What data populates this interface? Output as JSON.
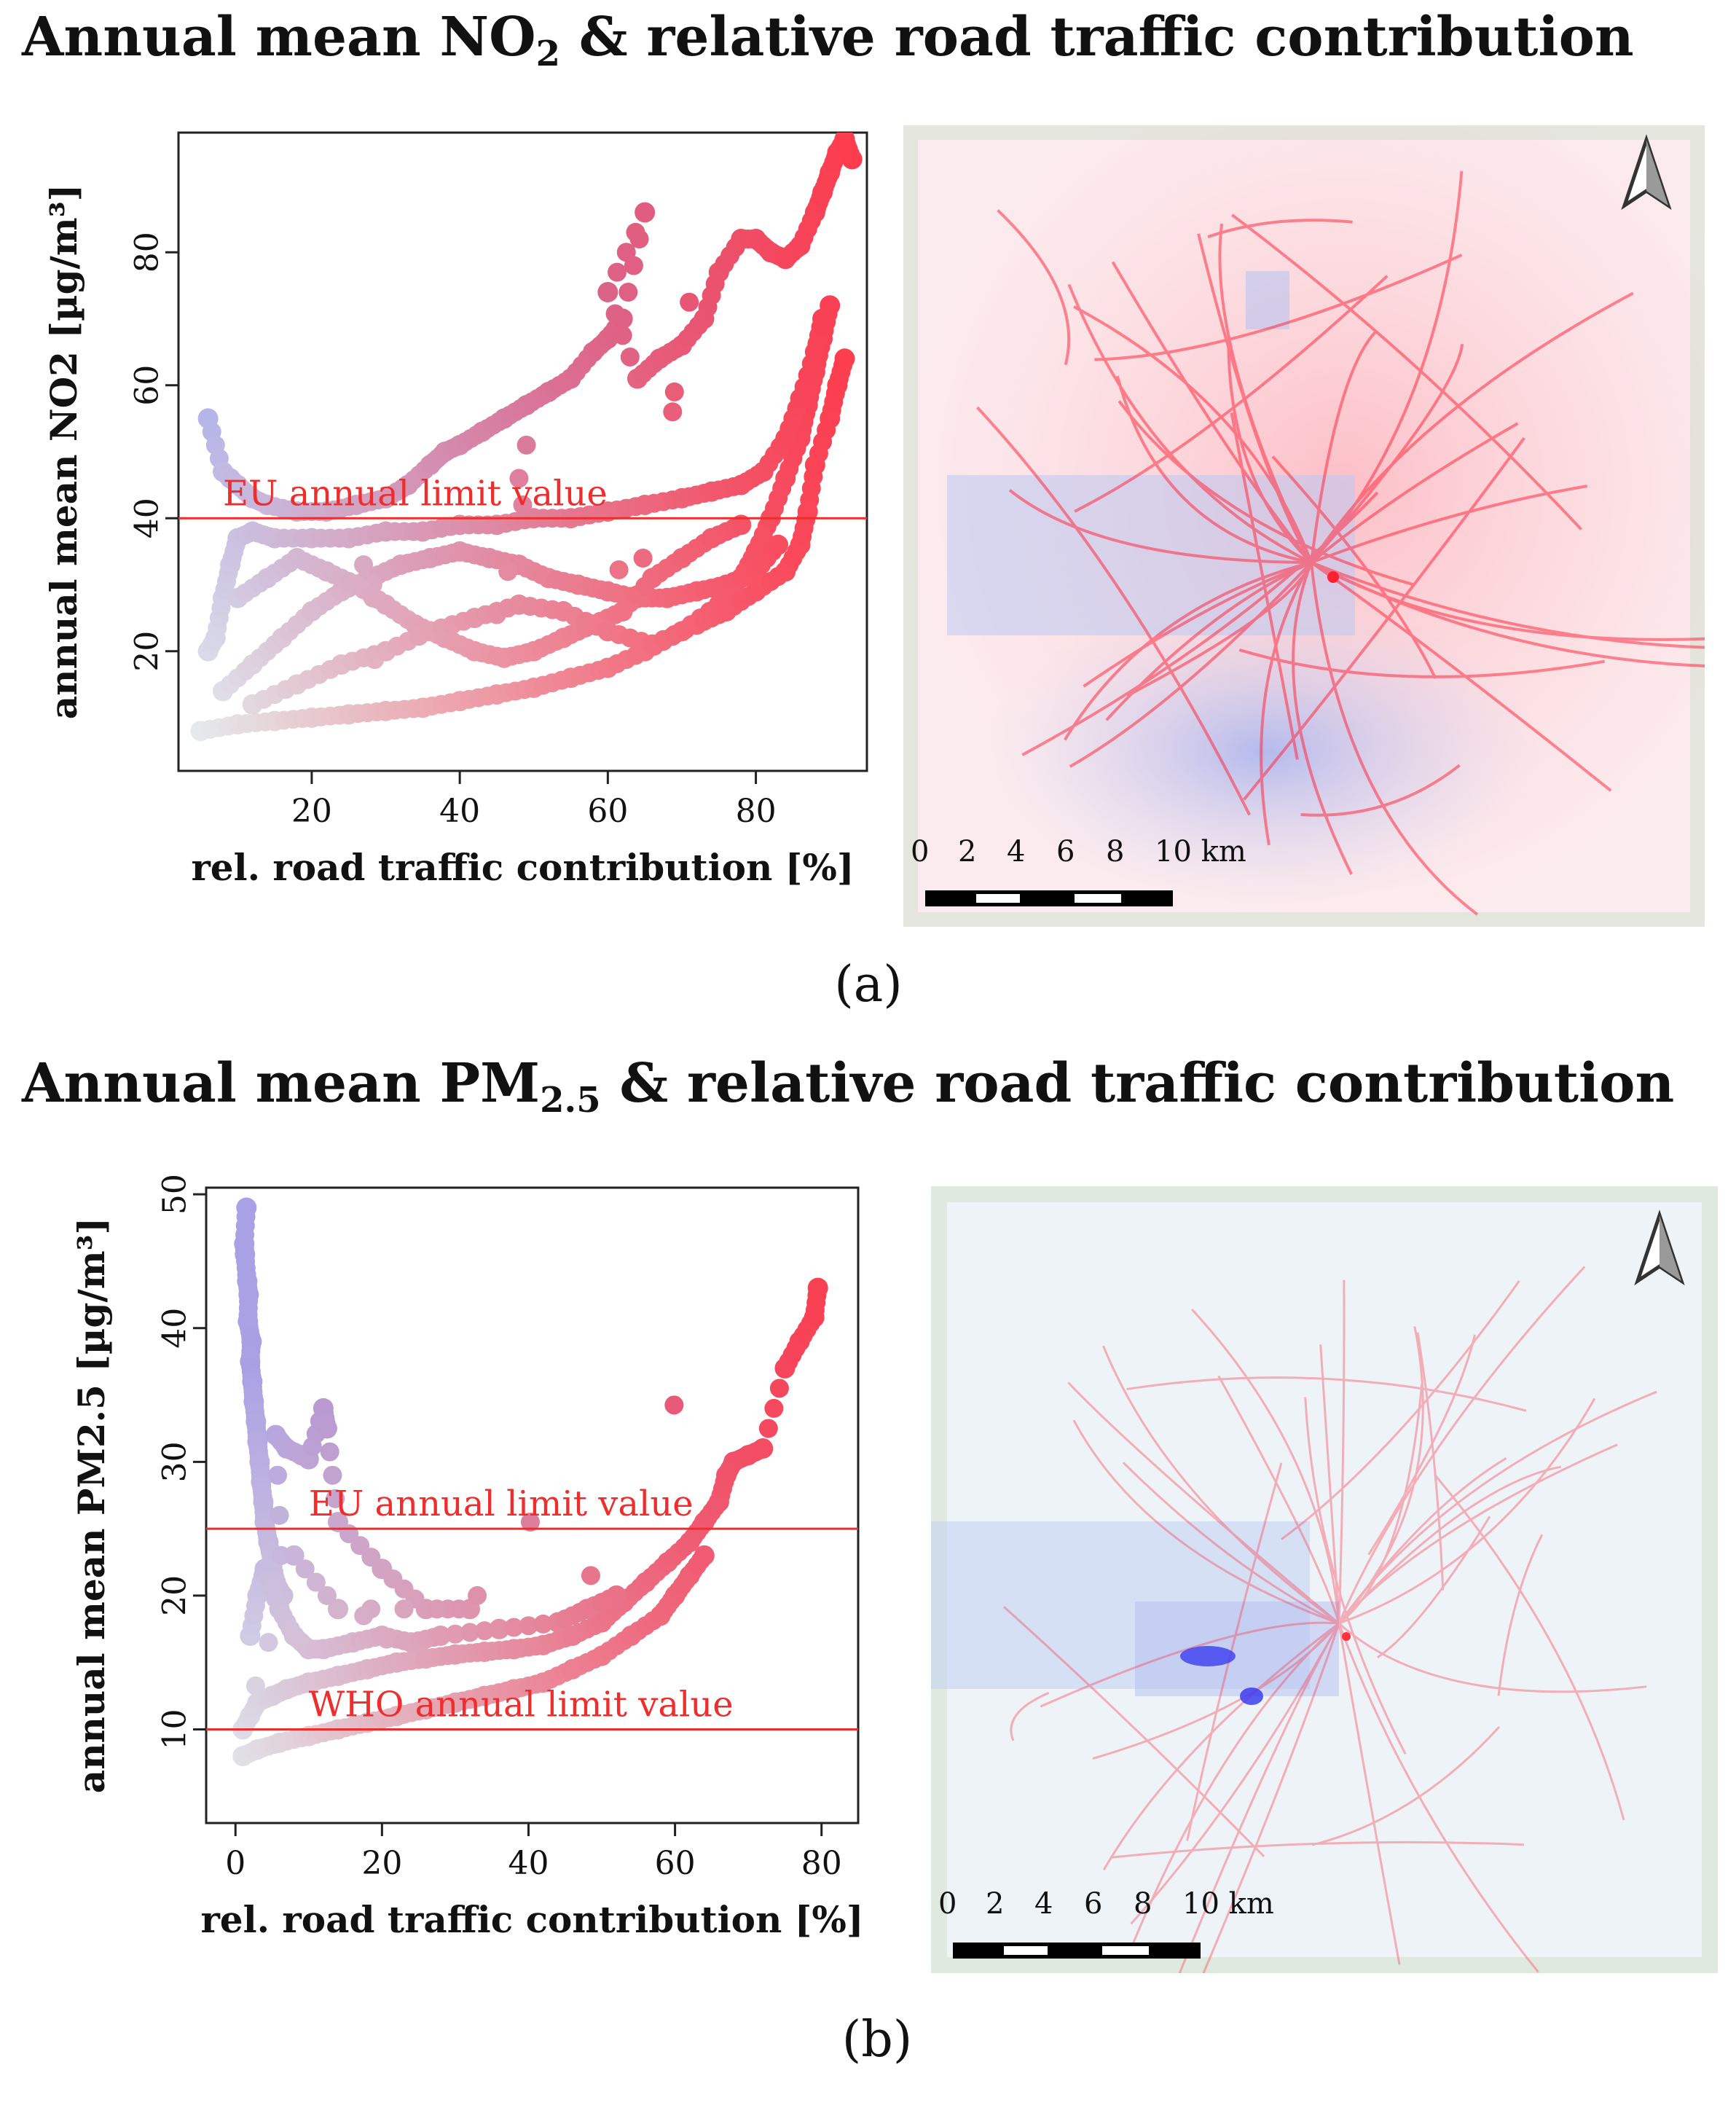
{
  "figure": {
    "panel_a": {
      "title_main": "Annual mean NO",
      "title_sub": "2",
      "title_rest": " & relative road traffic contribution",
      "label": "(a)"
    },
    "panel_b": {
      "title_main": "Annual mean PM",
      "title_sub": "2.5",
      "title_rest": " & relative road traffic contribution",
      "label": "(b)"
    }
  },
  "chart_data": [
    {
      "type": "scatter",
      "title": "",
      "xlabel": "rel. road traffic contribution [%]",
      "ylabel": "annual mean NO2 [µg/m³]",
      "xticks": [
        20,
        40,
        60,
        80
      ],
      "yticks": [
        20,
        40,
        60,
        80
      ],
      "xlim": [
        2,
        95
      ],
      "ylim": [
        2,
        98
      ],
      "grid": false,
      "color_scale": [
        "#eaf6f0",
        "#a3a8ef",
        "#ff3a4a"
      ],
      "reference_lines": [
        {
          "name": "EU annual limit value",
          "y": 40,
          "color": "#ee2d2d"
        }
      ],
      "points": [
        [
          6,
          55
        ],
        [
          8,
          47
        ],
        [
          9,
          46
        ],
        [
          10,
          45
        ],
        [
          12,
          43
        ],
        [
          14,
          42
        ],
        [
          18,
          41
        ],
        [
          22,
          41
        ],
        [
          26,
          42
        ],
        [
          30,
          43
        ],
        [
          33,
          45
        ],
        [
          36,
          48
        ],
        [
          38,
          50
        ],
        [
          40,
          51
        ],
        [
          43,
          53
        ],
        [
          46,
          55
        ],
        [
          49,
          57
        ],
        [
          52,
          59
        ],
        [
          55,
          61
        ],
        [
          58,
          65
        ],
        [
          60,
          67
        ],
        [
          62,
          70
        ],
        [
          65,
          86
        ],
        [
          60,
          74
        ],
        [
          64,
          61
        ],
        [
          67,
          64
        ],
        [
          70,
          66
        ],
        [
          73,
          70
        ],
        [
          75,
          77
        ],
        [
          78,
          82
        ],
        [
          80,
          82
        ],
        [
          82,
          80
        ],
        [
          84,
          79
        ],
        [
          86,
          81
        ],
        [
          88,
          86
        ],
        [
          89,
          89
        ],
        [
          90,
          92
        ],
        [
          91,
          95
        ],
        [
          92,
          97
        ],
        [
          93,
          94
        ],
        [
          5,
          8
        ],
        [
          10,
          9
        ],
        [
          15,
          9.5
        ],
        [
          20,
          10
        ],
        [
          25,
          10.5
        ],
        [
          30,
          11
        ],
        [
          35,
          11.5
        ],
        [
          40,
          12.5
        ],
        [
          45,
          13.5
        ],
        [
          50,
          14.5
        ],
        [
          55,
          16
        ],
        [
          60,
          17.5
        ],
        [
          65,
          20
        ],
        [
          70,
          23
        ],
        [
          75,
          27
        ],
        [
          78,
          31
        ],
        [
          80,
          35
        ],
        [
          82,
          40
        ],
        [
          84,
          46
        ],
        [
          86,
          52
        ],
        [
          87,
          57
        ],
        [
          88,
          62
        ],
        [
          89,
          67
        ],
        [
          90,
          72
        ],
        [
          6,
          20
        ],
        [
          7,
          22
        ],
        [
          8,
          28
        ],
        [
          9,
          33
        ],
        [
          10,
          37
        ],
        [
          12,
          38
        ],
        [
          15,
          37
        ],
        [
          20,
          37
        ],
        [
          25,
          37
        ],
        [
          30,
          38
        ],
        [
          35,
          38
        ],
        [
          40,
          39
        ],
        [
          45,
          39
        ],
        [
          50,
          40
        ],
        [
          55,
          40
        ],
        [
          60,
          41
        ],
        [
          65,
          42
        ],
        [
          70,
          43
        ],
        [
          74,
          44
        ],
        [
          78,
          45
        ],
        [
          81,
          47
        ],
        [
          84,
          52
        ],
        [
          86,
          58
        ],
        [
          88,
          65
        ],
        [
          89,
          70
        ],
        [
          8,
          14
        ],
        [
          12,
          18
        ],
        [
          16,
          22
        ],
        [
          20,
          26
        ],
        [
          24,
          29
        ],
        [
          28,
          31
        ],
        [
          32,
          33
        ],
        [
          36,
          34
        ],
        [
          40,
          35
        ],
        [
          44,
          34
        ],
        [
          48,
          33
        ],
        [
          52,
          31
        ],
        [
          56,
          30
        ],
        [
          60,
          29
        ],
        [
          64,
          28
        ],
        [
          68,
          28
        ],
        [
          72,
          29
        ],
        [
          76,
          30
        ],
        [
          80,
          32
        ],
        [
          83,
          36
        ],
        [
          10,
          28
        ],
        [
          14,
          31
        ],
        [
          18,
          34
        ],
        [
          22,
          32
        ],
        [
          26,
          30
        ],
        [
          30,
          27
        ],
        [
          34,
          24
        ],
        [
          38,
          22
        ],
        [
          42,
          20
        ],
        [
          46,
          19
        ],
        [
          50,
          20
        ],
        [
          54,
          22
        ],
        [
          58,
          24
        ],
        [
          62,
          26
        ],
        [
          66,
          31
        ],
        [
          70,
          34
        ],
        [
          74,
          37
        ],
        [
          78,
          39
        ],
        [
          12,
          12
        ],
        [
          18,
          15
        ],
        [
          24,
          18
        ],
        [
          30,
          20
        ],
        [
          36,
          23
        ],
        [
          42,
          25
        ],
        [
          48,
          27
        ],
        [
          54,
          26
        ],
        [
          60,
          23
        ],
        [
          66,
          21
        ],
        [
          72,
          24
        ],
        [
          76,
          26
        ],
        [
          80,
          29
        ],
        [
          84,
          32
        ],
        [
          86,
          36
        ],
        [
          87,
          41
        ],
        [
          88,
          48
        ],
        [
          90,
          55
        ],
        [
          91,
          60
        ],
        [
          92,
          64
        ]
      ]
    },
    {
      "type": "scatter",
      "title": "",
      "xlabel": "rel. road traffic contribution [%]",
      "ylabel": "annual mean PM2.5 [µg/m³]",
      "xticks": [
        0,
        20,
        40,
        60,
        80
      ],
      "yticks": [
        10,
        20,
        30,
        40,
        50
      ],
      "xlim": [
        -4,
        85
      ],
      "ylim": [
        3,
        50.5
      ],
      "grid": false,
      "color_scale": [
        "#eaf6f0",
        "#a3a8ef",
        "#ff3a4a"
      ],
      "reference_lines": [
        {
          "name": "EU annual limit value",
          "y": 25,
          "color": "#ee2d2d"
        },
        {
          "name": "WHO annual limit value",
          "y": 10,
          "color": "#ee2d2d"
        }
      ],
      "points": [
        [
          1.5,
          49
        ],
        [
          1.2,
          46.3
        ],
        [
          1.3,
          45.5
        ],
        [
          1.6,
          43.5
        ],
        [
          1.8,
          42.5
        ],
        [
          1.7,
          40.5
        ],
        [
          2.2,
          39
        ],
        [
          2,
          37.5
        ],
        [
          2.3,
          36
        ],
        [
          2.5,
          34.5
        ],
        [
          2.8,
          33
        ],
        [
          3,
          31.5
        ],
        [
          3.3,
          30
        ],
        [
          3.5,
          28.5
        ],
        [
          3.8,
          27
        ],
        [
          4,
          25.5
        ],
        [
          4.5,
          24
        ],
        [
          5,
          22.5
        ],
        [
          5.5,
          21
        ],
        [
          6.5,
          20
        ],
        [
          5.5,
          32
        ],
        [
          7,
          31
        ],
        [
          9,
          30.5
        ],
        [
          10,
          30.2
        ],
        [
          12,
          34
        ],
        [
          12.5,
          32.5
        ],
        [
          14,
          25.5
        ],
        [
          20,
          22
        ],
        [
          26,
          19
        ],
        [
          32,
          19
        ],
        [
          14,
          19
        ],
        [
          8,
          23
        ],
        [
          1,
          10
        ],
        [
          2,
          11
        ],
        [
          3,
          12
        ],
        [
          5,
          12.5
        ],
        [
          7,
          13
        ],
        [
          10,
          13.5
        ],
        [
          14,
          14
        ],
        [
          18,
          14.5
        ],
        [
          22,
          15
        ],
        [
          26,
          15.3
        ],
        [
          30,
          15.6
        ],
        [
          34,
          15.8
        ],
        [
          38,
          16
        ],
        [
          42,
          16.3
        ],
        [
          46,
          17
        ],
        [
          50,
          18
        ],
        [
          53,
          19.5
        ],
        [
          56,
          21
        ],
        [
          59,
          22.5
        ],
        [
          62,
          24
        ],
        [
          64,
          25.5
        ],
        [
          66,
          27
        ],
        [
          67,
          29
        ],
        [
          68,
          30
        ],
        [
          70,
          30.5
        ],
        [
          72,
          31
        ],
        [
          75,
          37
        ],
        [
          77,
          39
        ],
        [
          79,
          40.8
        ],
        [
          79.5,
          43
        ],
        [
          1,
          8
        ],
        [
          3,
          8.5
        ],
        [
          6,
          9
        ],
        [
          10,
          9.5
        ],
        [
          14,
          10
        ],
        [
          18,
          10.5
        ],
        [
          22,
          11
        ],
        [
          26,
          11.5
        ],
        [
          30,
          12
        ],
        [
          34,
          12.5
        ],
        [
          38,
          13
        ],
        [
          42,
          13.5
        ],
        [
          46,
          14.5
        ],
        [
          50,
          15.5
        ],
        [
          54,
          17
        ],
        [
          58,
          18.5
        ],
        [
          60,
          20
        ],
        [
          62,
          21.5
        ],
        [
          64,
          23
        ],
        [
          2,
          17
        ],
        [
          3,
          20
        ],
        [
          4,
          22
        ],
        [
          6,
          19
        ],
        [
          8,
          17
        ],
        [
          10,
          16
        ],
        [
          12,
          16
        ],
        [
          16,
          16.5
        ],
        [
          20,
          17
        ],
        [
          24,
          16.5
        ],
        [
          28,
          17
        ],
        [
          36,
          17.5
        ],
        [
          44,
          18
        ],
        [
          48,
          19
        ],
        [
          52,
          20
        ]
      ]
    }
  ],
  "maps": [
    {
      "scale_labels": [
        "0",
        "2",
        "4",
        "6",
        "8",
        "10 km"
      ],
      "north_arrow": "north-arrow-icon",
      "legend_colors": {
        "low": "#8fa6f0",
        "high": "#ff2e44"
      }
    },
    {
      "scale_labels": [
        "0",
        "2",
        "4",
        "6",
        "8",
        "10 km"
      ],
      "north_arrow": "north-arrow-icon",
      "legend_colors": {
        "low": "#3b3cf0",
        "high": "#ff2e44"
      }
    }
  ]
}
